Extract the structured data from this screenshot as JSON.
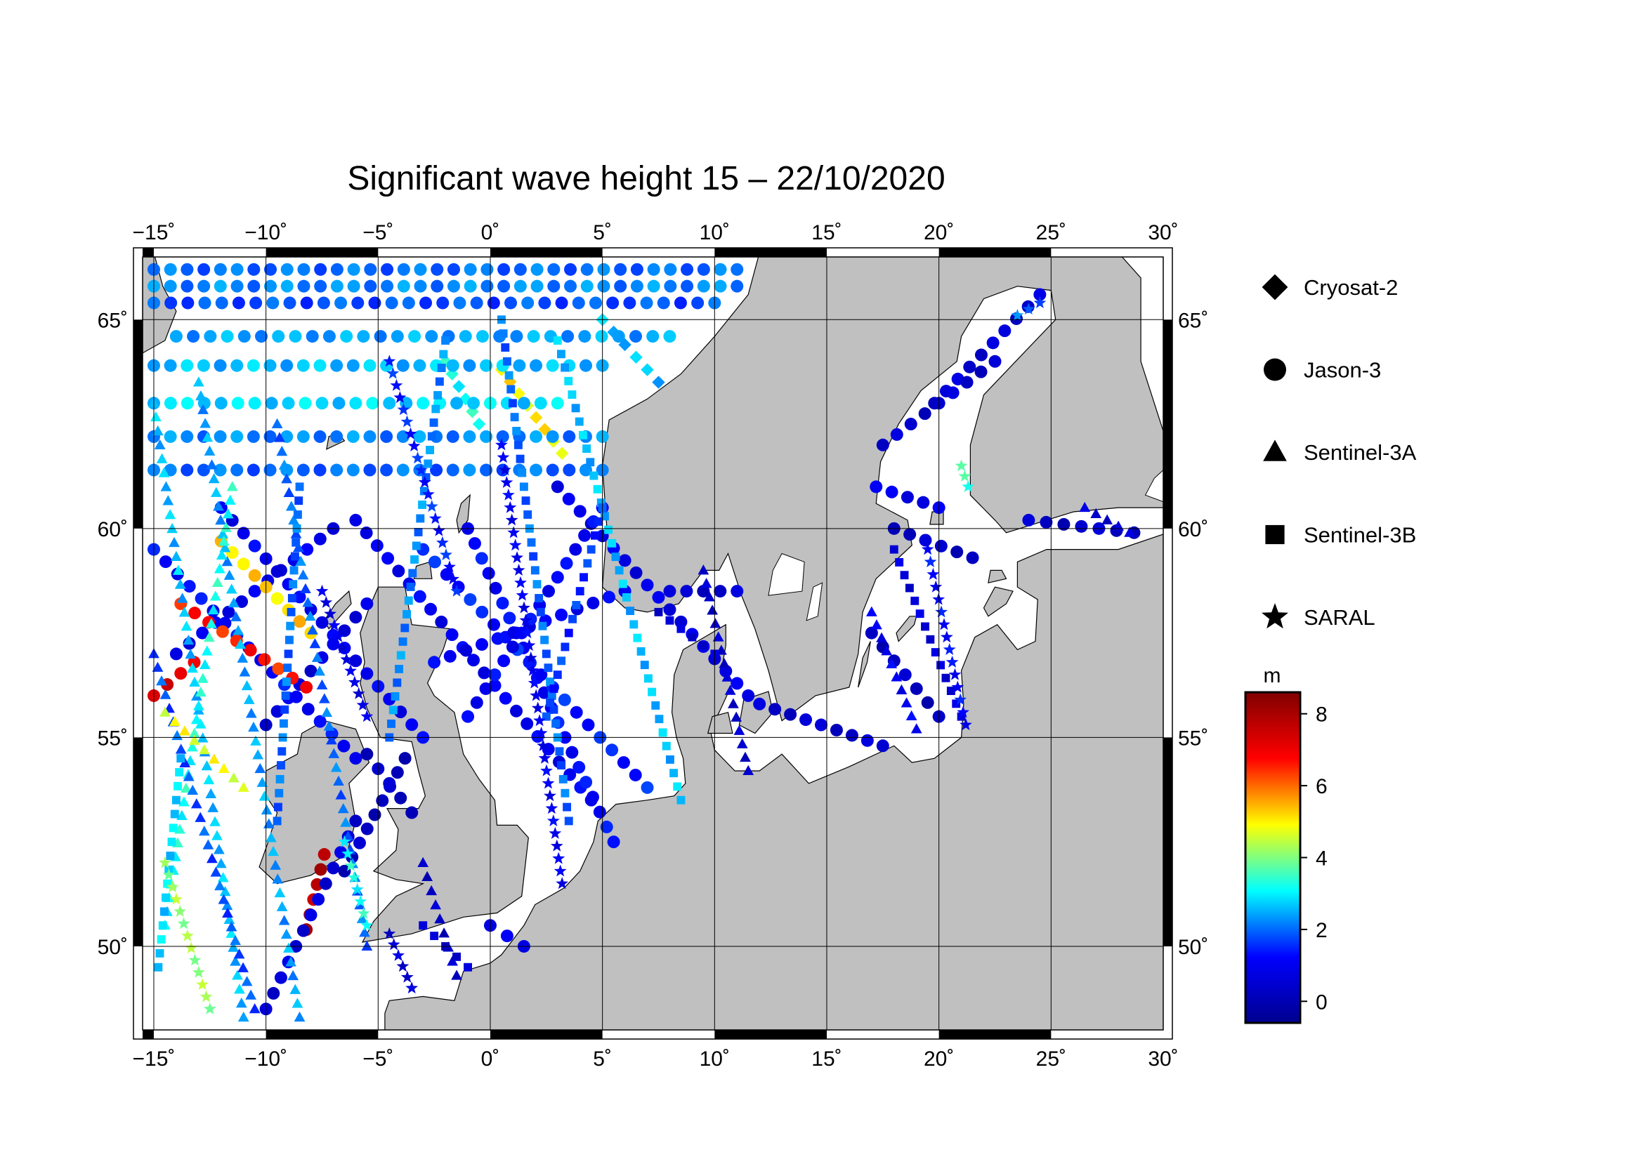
{
  "title": "Significant wave height 15 – 22/10/2020",
  "map": {
    "lon_range": [
      -15.5,
      30
    ],
    "lat_range": [
      48,
      66.5
    ],
    "lon_ticks": [
      {
        "value": -15,
        "label": "−15˚"
      },
      {
        "value": -10,
        "label": "−10˚"
      },
      {
        "value": -5,
        "label": "−5˚"
      },
      {
        "value": 0,
        "label": "0˚"
      },
      {
        "value": 5,
        "label": "5˚"
      },
      {
        "value": 10,
        "label": "10˚"
      },
      {
        "value": 15,
        "label": "15˚"
      },
      {
        "value": 20,
        "label": "20˚"
      },
      {
        "value": 25,
        "label": "25˚"
      },
      {
        "value": 30,
        "label": "30˚"
      }
    ],
    "lat_ticks": [
      {
        "value": 50,
        "label": "50˚"
      },
      {
        "value": 55,
        "label": "55˚"
      },
      {
        "value": 60,
        "label": "60˚"
      },
      {
        "value": 65,
        "label": "65˚"
      }
    ],
    "land_color": "#c0c0c0",
    "sea_color": "#ffffff",
    "grid": true
  },
  "legend": {
    "items": [
      {
        "label": "Cryosat-2",
        "symbol": "diamond"
      },
      {
        "label": "Jason-3",
        "symbol": "circle"
      },
      {
        "label": "Sentinel-3A",
        "symbol": "triangle"
      },
      {
        "label": "Sentinel-3B",
        "symbol": "square"
      },
      {
        "label": "SARAL",
        "symbol": "star"
      }
    ]
  },
  "colorbar": {
    "unit": "m",
    "range": [
      -0.6,
      8.6
    ],
    "ticks": [
      {
        "value": 0,
        "label": "0"
      },
      {
        "value": 2,
        "label": "2"
      },
      {
        "value": 4,
        "label": "4"
      },
      {
        "value": 6,
        "label": "6"
      },
      {
        "value": 8,
        "label": "8"
      }
    ],
    "colormap": [
      "#00008f",
      "#0000ff",
      "#00ffff",
      "#ffff00",
      "#ff0000",
      "#800000"
    ]
  },
  "chart_data": {
    "type": "scatter",
    "title": "Significant wave height 15 – 22/10/2020",
    "xlabel": "",
    "ylabel": "",
    "xlim": [
      -15.5,
      30
    ],
    "ylim": [
      48,
      66.5
    ],
    "value_unit": "m",
    "series": [
      {
        "name": "Cryosat-2",
        "symbol": "diamond",
        "tracks": [
          {
            "from": [
              0.5,
              63.8
            ],
            "to": [
              3.2,
              61.8
            ],
            "swh": 5.0
          },
          {
            "from": [
              -2.0,
              64.0
            ],
            "to": [
              -0.5,
              62.5
            ],
            "swh": 3.2
          },
          {
            "from": [
              5.0,
              65.0
            ],
            "to": [
              7.5,
              63.5
            ],
            "swh": 2.6
          }
        ]
      },
      {
        "name": "Jason-3",
        "symbol": "circle",
        "tracks": [
          {
            "from": [
              -15.0,
              66.2
            ],
            "to": [
              11.0,
              66.2
            ],
            "swh": 2.0
          },
          {
            "from": [
              -15.0,
              65.8
            ],
            "to": [
              11.0,
              65.8
            ],
            "swh": 2.2
          },
          {
            "from": [
              -15.0,
              65.4
            ],
            "to": [
              10.0,
              65.4
            ],
            "swh": 1.8
          },
          {
            "from": [
              -14.0,
              64.6
            ],
            "to": [
              8.0,
              64.6
            ],
            "swh": 2.4
          },
          {
            "from": [
              -15.0,
              63.9
            ],
            "to": [
              5.0,
              63.9
            ],
            "swh": 2.6
          },
          {
            "from": [
              -15.0,
              63.0
            ],
            "to": [
              3.0,
              63.0
            ],
            "swh": 2.8
          },
          {
            "from": [
              -15.0,
              62.2
            ],
            "to": [
              5.0,
              62.2
            ],
            "swh": 2.2
          },
          {
            "from": [
              -15.0,
              61.4
            ],
            "to": [
              5.0,
              61.4
            ],
            "swh": 2.0
          },
          {
            "from": [
              -15.0,
              59.5
            ],
            "to": [
              -6.0,
              54.5
            ],
            "swh": 1.2
          },
          {
            "from": [
              -12.0,
              60.5
            ],
            "to": [
              -3.0,
              55.0
            ],
            "swh": 1.0
          },
          {
            "from": [
              -6.0,
              60.2
            ],
            "to": [
              4.5,
              53.5
            ],
            "swh": 1.0
          },
          {
            "from": [
              -1.0,
              60.0
            ],
            "to": [
              5.5,
              52.5
            ],
            "swh": 1.2
          },
          {
            "from": [
              3.0,
              61.0
            ],
            "to": [
              11.5,
              56.0
            ],
            "swh": 0.8
          },
          {
            "from": [
              -3.0,
              59.5
            ],
            "to": [
              7.0,
              53.8
            ],
            "swh": 1.4
          },
          {
            "from": [
              -2.5,
              56.8
            ],
            "to": [
              6.0,
              58.5
            ],
            "swh": 1.0
          },
          {
            "from": [
              -1.0,
              55.5
            ],
            "to": [
              5.0,
              60.5
            ],
            "swh": 1.1
          },
          {
            "from": [
              -14.0,
              57.0
            ],
            "to": [
              -7.0,
              60.0
            ],
            "swh": 0.9
          },
          {
            "from": [
              -10.0,
              55.3
            ],
            "to": [
              -5.5,
              58.2
            ],
            "swh": 0.7
          },
          {
            "from": [
              -13.8,
              58.2
            ],
            "to": [
              -8.2,
              56.2
            ],
            "swh": 6.6
          },
          {
            "from": [
              -15.0,
              56.0
            ],
            "to": [
              -13.2,
              56.8
            ],
            "swh": 7.2
          },
          {
            "from": [
              -8.2,
              50.4
            ],
            "to": [
              -7.4,
              52.2
            ],
            "swh": 7.8
          },
          {
            "from": [
              -12.0,
              59.7
            ],
            "to": [
              -8.0,
              57.5
            ],
            "swh": 5.2
          },
          {
            "from": [
              -10.0,
              48.5
            ],
            "to": [
              -6.0,
              53.0
            ],
            "swh": 0.6
          },
          {
            "from": [
              -6.5,
              51.8
            ],
            "to": [
              -3.8,
              54.5
            ],
            "swh": 0.2
          },
          {
            "from": [
              -5.5,
              54.6
            ],
            "to": [
              -3.5,
              53.2
            ],
            "swh": 0.3
          },
          {
            "from": [
              0.0,
              50.5
            ],
            "to": [
              1.5,
              50.0
            ],
            "swh": 0.8
          },
          {
            "from": [
              8.0,
              58.5
            ],
            "to": [
              11.0,
              58.5
            ],
            "swh": 0.4
          },
          {
            "from": [
              12.0,
              55.8
            ],
            "to": [
              17.5,
              54.8
            ],
            "swh": 0.4
          },
          {
            "from": [
              17.0,
              57.5
            ],
            "to": [
              20.0,
              55.5
            ],
            "swh": 0.2
          },
          {
            "from": [
              18.0,
              60.0
            ],
            "to": [
              21.5,
              59.3
            ],
            "swh": 0.3
          },
          {
            "from": [
              19.8,
              63.0
            ],
            "to": [
              24.5,
              65.6
            ],
            "swh": 0.5
          },
          {
            "from": [
              17.5,
              62.0
            ],
            "to": [
              22.5,
              64.0
            ],
            "swh": 0.4
          },
          {
            "from": [
              17.2,
              61.0
            ],
            "to": [
              20.0,
              60.5
            ],
            "swh": 0.9
          },
          {
            "from": [
              24.0,
              60.2
            ],
            "to": [
              28.7,
              59.9
            ],
            "swh": 0.3
          }
        ]
      },
      {
        "name": "Sentinel-3A",
        "symbol": "triangle",
        "tracks": [
          {
            "from": [
              -15.0,
              63.0
            ],
            "to": [
              -11.0,
              48.3
            ],
            "swh": 2.6
          },
          {
            "from": [
              -13.0,
              63.5
            ],
            "to": [
              -8.5,
              48.3
            ],
            "swh": 2.4
          },
          {
            "from": [
              -11.5,
              61.0
            ],
            "to": [
              -14.5,
              50.5
            ],
            "swh": 3.2
          },
          {
            "from": [
              -9.5,
              62.5
            ],
            "to": [
              -5.5,
              50.0
            ],
            "swh": 2.0
          },
          {
            "from": [
              -15.0,
              57.0
            ],
            "to": [
              -10.5,
              48.5
            ],
            "swh": 1.8
          },
          {
            "from": [
              -14.5,
              55.6
            ],
            "to": [
              -11.0,
              53.8
            ],
            "swh": 4.8
          },
          {
            "from": [
              9.5,
              59.0
            ],
            "to": [
              11.5,
              54.2
            ],
            "swh": 0.4
          },
          {
            "from": [
              17.0,
              58.0
            ],
            "to": [
              19.0,
              55.2
            ],
            "swh": 1.0
          },
          {
            "from": [
              26.5,
              60.5
            ],
            "to": [
              28.5,
              59.9
            ],
            "swh": 0.5
          },
          {
            "from": [
              -3.0,
              52.0
            ],
            "to": [
              -1.5,
              49.3
            ],
            "swh": 0.3
          }
        ]
      },
      {
        "name": "Sentinel-3B",
        "symbol": "square",
        "tracks": [
          {
            "from": [
              -2.0,
              64.5
            ],
            "to": [
              -4.5,
              55.0
            ],
            "swh": 2.2
          },
          {
            "from": [
              0.5,
              65.0
            ],
            "to": [
              3.5,
              53.0
            ],
            "swh": 2.0
          },
          {
            "from": [
              3.0,
              64.5
            ],
            "to": [
              8.5,
              53.5
            ],
            "swh": 2.6
          },
          {
            "from": [
              -8.5,
              61.0
            ],
            "to": [
              -9.5,
              53.0
            ],
            "swh": 2.0
          },
          {
            "from": [
              -14.8,
              49.5
            ],
            "to": [
              -13.8,
              54.5
            ],
            "swh": 2.8
          },
          {
            "from": [
              7.5,
              58.0
            ],
            "to": [
              10.0,
              57.0
            ],
            "swh": 0.5
          },
          {
            "from": [
              18.0,
              59.5
            ],
            "to": [
              21.0,
              55.5
            ],
            "swh": 0.6
          },
          {
            "from": [
              -3.0,
              50.5
            ],
            "to": [
              -1.0,
              49.5
            ],
            "swh": 0.4
          },
          {
            "from": [
              5.0,
              60.5
            ],
            "to": [
              2.5,
              55.5
            ],
            "swh": 1.6
          }
        ]
      },
      {
        "name": "SARAL",
        "symbol": "star",
        "tracks": [
          {
            "from": [
              -4.5,
              64.0
            ],
            "to": [
              -1.5,
              58.5
            ],
            "swh": 1.4
          },
          {
            "from": [
              0.5,
              62.0
            ],
            "to": [
              3.2,
              51.5
            ],
            "swh": 1.0
          },
          {
            "from": [
              -7.5,
              58.5
            ],
            "to": [
              -5.5,
              55.5
            ],
            "swh": 0.8
          },
          {
            "from": [
              -14.5,
              52.0
            ],
            "to": [
              -12.5,
              48.5
            ],
            "swh": 4.2
          },
          {
            "from": [
              -6.5,
              52.5
            ],
            "to": [
              -5.5,
              50.5
            ],
            "swh": 3.2
          },
          {
            "from": [
              -4.5,
              50.3
            ],
            "to": [
              -3.5,
              49.0
            ],
            "swh": 0.5
          },
          {
            "from": [
              19.5,
              59.5
            ],
            "to": [
              21.2,
              55.3
            ],
            "swh": 1.2
          },
          {
            "from": [
              21.0,
              61.5
            ],
            "to": [
              21.3,
              61.0
            ],
            "swh": 3.5
          },
          {
            "from": [
              23.5,
              65.1
            ],
            "to": [
              24.5,
              65.4
            ],
            "swh": 2.0
          }
        ]
      }
    ]
  }
}
